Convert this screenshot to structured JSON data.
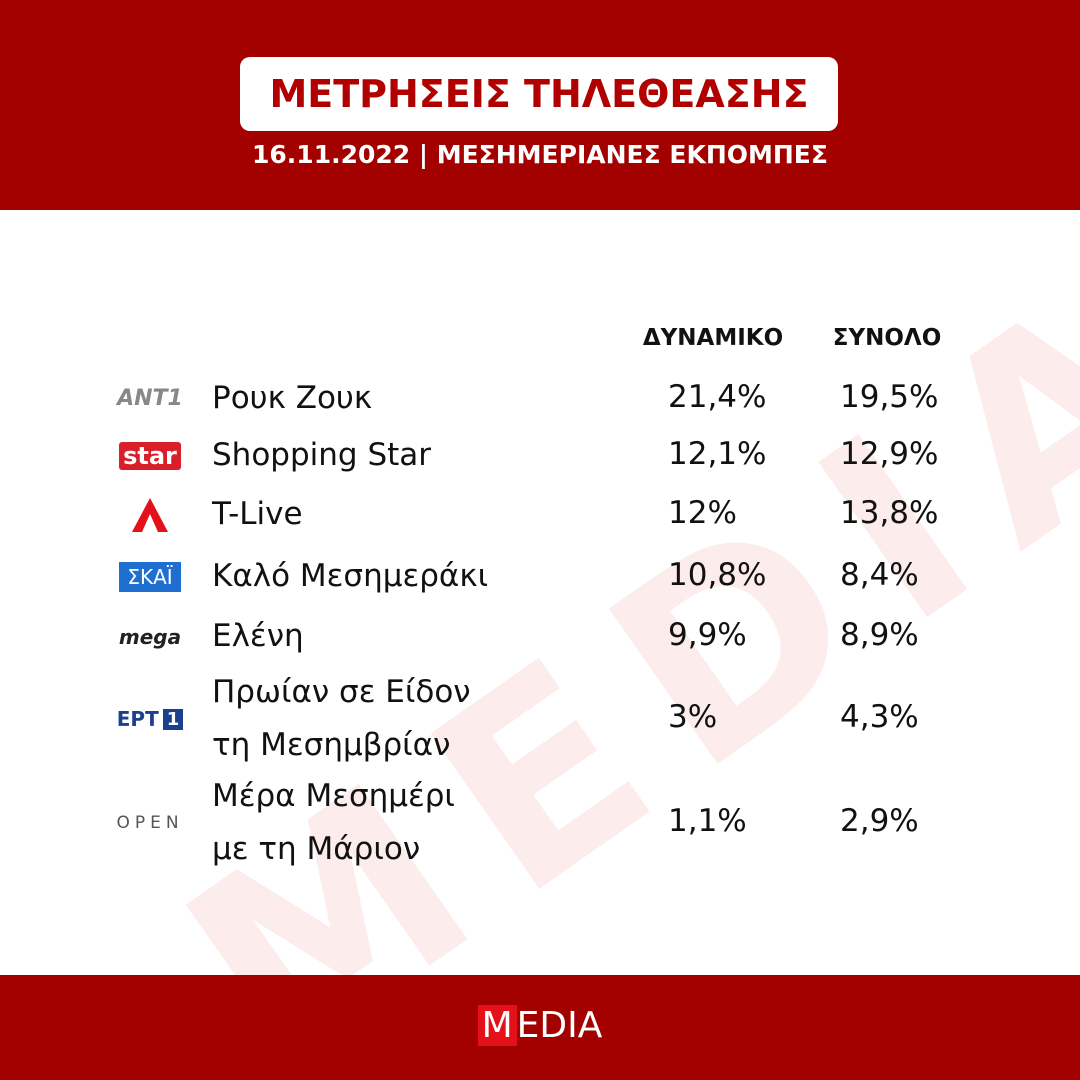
{
  "header": {
    "title": "ΜΕΤΡΗΣΕΙΣ ΤΗΛΕΘΕΑΣΗΣ",
    "subtitle": "16.11.2022 | ΜΕΣΗΜΕΡΙΑΝΕΣ ΕΚΠΟΜΠΕΣ"
  },
  "watermark": "MEDIA",
  "table": {
    "columns": [
      "ΔΥΝΑΜΙΚΟ",
      "ΣΥΝΟΛΟ"
    ],
    "rows": [
      {
        "logo": [
          "ANT1"
        ],
        "name": [
          "Ρουκ Ζουκ"
        ],
        "values": [
          "21,4%",
          "19,5%"
        ]
      },
      {
        "logo": [
          "star"
        ],
        "name": [
          "Shopping Star"
        ],
        "values": [
          "12,1%",
          "12,9%"
        ]
      },
      {
        "name": [
          "T-Live"
        ],
        "values": [
          "12%",
          "13,8%"
        ]
      },
      {
        "logo": [
          "ΣΚΑΪ"
        ],
        "name": [
          "Καλό Μεσημεράκι"
        ],
        "values": [
          "10,8%",
          "8,4%"
        ]
      },
      {
        "logo": [
          "mega"
        ],
        "name": [
          "Ελένη"
        ],
        "values": [
          "9,9%",
          "8,9%"
        ]
      },
      {
        "logo": [
          "ΕΡΤ",
          "1"
        ],
        "name": [
          "Πρωίαν σε Είδον",
          "τη Μεσημβρίαν"
        ],
        "values": [
          "3%",
          "4,3%"
        ]
      },
      {
        "logo": [
          "OPEN"
        ],
        "name": [
          "Μέρα Μεσημέρι",
          "με τη Μάριον"
        ],
        "values": [
          "1,1%",
          "2,9%"
        ]
      }
    ]
  },
  "footer": {
    "logo": [
      "M",
      "EDIA"
    ]
  }
}
